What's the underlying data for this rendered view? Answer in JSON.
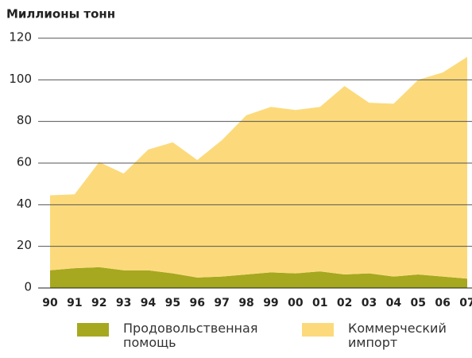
{
  "chart_data": {
    "type": "area",
    "stacked": true,
    "title": "Миллионы тонн",
    "categories": [
      "90",
      "91",
      "92",
      "93",
      "94",
      "95",
      "96",
      "97",
      "98",
      "99",
      "00",
      "01",
      "02",
      "03",
      "04",
      "05",
      "06",
      "07"
    ],
    "series": [
      {
        "name": "Продовольственная помощь",
        "color": "#a6a81f",
        "values": [
          8.5,
          9.5,
          10,
          8.5,
          8.5,
          7,
          5,
          5.5,
          6.5,
          7.5,
          7,
          8,
          6.5,
          7,
          5.5,
          6.5,
          5.5,
          4.5
        ]
      },
      {
        "name": "Коммерческий импорт",
        "color": "#fcda7b",
        "values": [
          36,
          35.5,
          50.5,
          46.5,
          58,
          63,
          56.5,
          65.5,
          76.5,
          79.5,
          78.5,
          79,
          90.5,
          82,
          83,
          93.5,
          98,
          106.5
        ]
      }
    ],
    "ylim": [
      0,
      120
    ],
    "yticks": [
      0,
      20,
      40,
      60,
      80,
      100,
      120
    ],
    "grid": true
  }
}
